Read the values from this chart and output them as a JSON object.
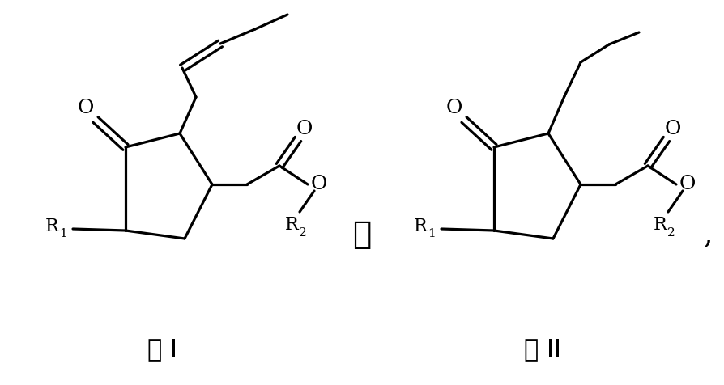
{
  "background_color": "#ffffff",
  "line_color": "#000000",
  "line_width": 2.3,
  "text_color": "#000000",
  "fig_width": 8.94,
  "fig_height": 4.76,
  "label_I": "式 I",
  "label_II": "式 II",
  "separator": "或",
  "comma": ",",
  "font_size_O": 18,
  "font_size_R": 16,
  "font_size_sub": 11,
  "font_size_label": 22,
  "font_size_sep": 28
}
